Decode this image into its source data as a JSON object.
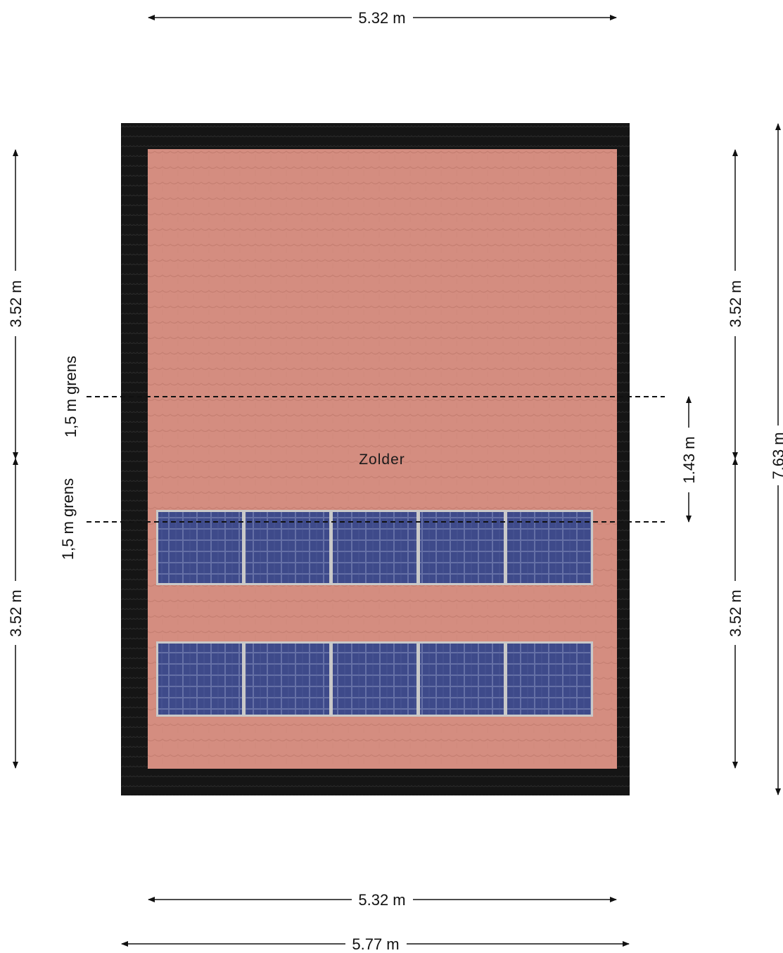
{
  "room": {
    "name": "Zolder"
  },
  "dimensions": {
    "top_width": "5.32 m",
    "bottom_inner_width": "5.32 m",
    "bottom_outer_width": "5.77 m",
    "left_upper": "3.52 m",
    "left_lower": "3.52 m",
    "right_upper": "3.52 m",
    "right_lower": "3.52 m",
    "right_total": "7.63 m",
    "between_limits": "1.43 m"
  },
  "limits": {
    "upper_label": "1,5 m grens",
    "lower_label": "1,5 m grens"
  },
  "colors": {
    "wall": "#151515",
    "roof_tile": "#d48d80",
    "solar_panel": "#3e4a8a",
    "panel_frame": "#c9c9c9"
  },
  "solar_panels": {
    "rows": 2,
    "panels_per_row": 5
  }
}
